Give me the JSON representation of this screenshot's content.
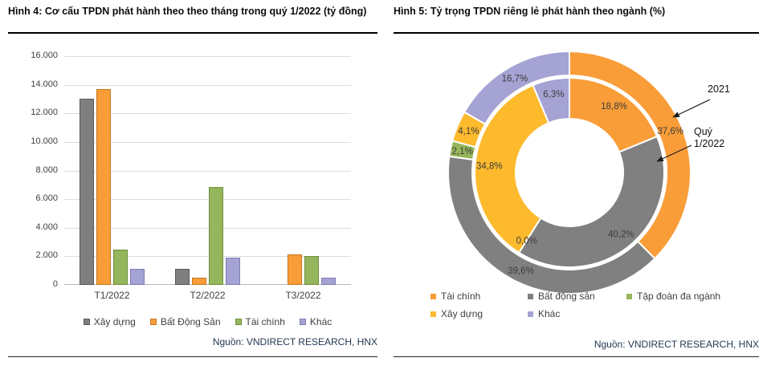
{
  "chart_data": [
    {
      "type": "bar",
      "title": "Hình 4: Cơ cấu TPDN phát hành theo theo tháng trong quý 1/2022 (tỷ đồng)",
      "categories": [
        "T1/2022",
        "T2/2022",
        "T3/2022"
      ],
      "series": [
        {
          "name": "Xây dựng",
          "color": "#7f7f7f",
          "border": "#5a5a5a",
          "values": [
            13050,
            1150,
            0
          ]
        },
        {
          "name": "Bất Động Sản",
          "color": "#f99d38",
          "border": "#c57722",
          "values": [
            13700,
            500,
            2150
          ]
        },
        {
          "name": "Tài chính",
          "color": "#95b65c",
          "border": "#6f8f3e",
          "values": [
            2450,
            6850,
            2000
          ]
        },
        {
          "name": "Khác",
          "color": "#a5a3d3",
          "border": "#7f7cb3",
          "values": [
            1100,
            1900,
            500
          ]
        }
      ],
      "ylabel": "",
      "xlabel": "",
      "ylim": [
        0,
        16000
      ],
      "y_tick_step": 2000,
      "grid": true,
      "legend_position": "bottom",
      "source": "Nguồn: VNDIRECT RESEARCH, HNX"
    },
    {
      "type": "pie",
      "subtype": "double-ring-donut",
      "title": "Hình 5: Tỷ trọng TPDN riêng lẻ phát hành theo ngành (%)",
      "categories": [
        "Tài chính",
        "Bất động sản",
        "Tập đoàn đa ngành",
        "Xây dựng",
        "Khác"
      ],
      "colors": [
        "#f99d38",
        "#808080",
        "#95b65c",
        "#fdba2d",
        "#a5a3d3"
      ],
      "series": [
        {
          "name": "2021",
          "ring": "outer",
          "values": [
            37.6,
            39.6,
            2.1,
            4.1,
            16.7
          ]
        },
        {
          "name": "Quý 1/2022",
          "ring": "inner",
          "values": [
            18.8,
            40.2,
            0.0,
            34.8,
            6.3
          ]
        }
      ],
      "annotations": [
        {
          "text": "2021",
          "lines": [
            "2021"
          ]
        },
        {
          "text": "Quý 1/2022",
          "lines": [
            "Quý",
            "1/2022"
          ]
        }
      ],
      "legend_position": "bottom",
      "source": "Nguồn: VNDIRECT RESEARCH, HNX"
    }
  ]
}
